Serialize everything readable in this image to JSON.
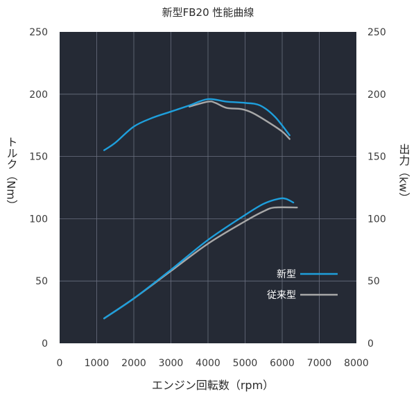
{
  "chart_data": {
    "type": "line",
    "title": "新型FB20 性能曲線",
    "xlabel": "エンジン回転数（rpm）",
    "ylabel_left": "トルク（Nm）",
    "ylabel_right": "出力（kw）",
    "xlim": [
      0,
      8000
    ],
    "ylim": [
      0,
      250
    ],
    "xticks": [
      "0",
      "1000",
      "2000",
      "3000",
      "4000",
      "5000",
      "6000",
      "7000",
      "8000"
    ],
    "yticks": [
      "0",
      "50",
      "100",
      "150",
      "200",
      "250"
    ],
    "grid": true,
    "legend_position": "lower-right",
    "background": "#252a35",
    "series": [
      {
        "name": "新型",
        "color": "#1e9fdc",
        "torque": [
          [
            1200,
            155
          ],
          [
            1500,
            161
          ],
          [
            2000,
            174
          ],
          [
            2500,
            181
          ],
          [
            3000,
            186
          ],
          [
            3500,
            191
          ],
          [
            4000,
            196
          ],
          [
            4500,
            194
          ],
          [
            5000,
            193
          ],
          [
            5400,
            191
          ],
          [
            5800,
            182
          ],
          [
            6200,
            167
          ]
        ],
        "power": [
          [
            1200,
            20
          ],
          [
            2000,
            36
          ],
          [
            3000,
            59
          ],
          [
            4000,
            83
          ],
          [
            5000,
            103
          ],
          [
            5500,
            112
          ],
          [
            5900,
            116
          ],
          [
            6100,
            116
          ],
          [
            6300,
            113
          ]
        ]
      },
      {
        "name": "従来型",
        "color": "#a8a8a8",
        "torque": [
          [
            3500,
            190
          ],
          [
            4000,
            194
          ],
          [
            4200,
            193
          ],
          [
            4500,
            189
          ],
          [
            4900,
            188
          ],
          [
            5200,
            185
          ],
          [
            5600,
            178
          ],
          [
            6000,
            170
          ],
          [
            6200,
            164
          ]
        ],
        "power": [
          [
            1200,
            20
          ],
          [
            2000,
            36
          ],
          [
            3000,
            58
          ],
          [
            4000,
            80
          ],
          [
            5000,
            98
          ],
          [
            5500,
            106
          ],
          [
            5800,
            109
          ],
          [
            6400,
            109
          ]
        ]
      }
    ]
  }
}
